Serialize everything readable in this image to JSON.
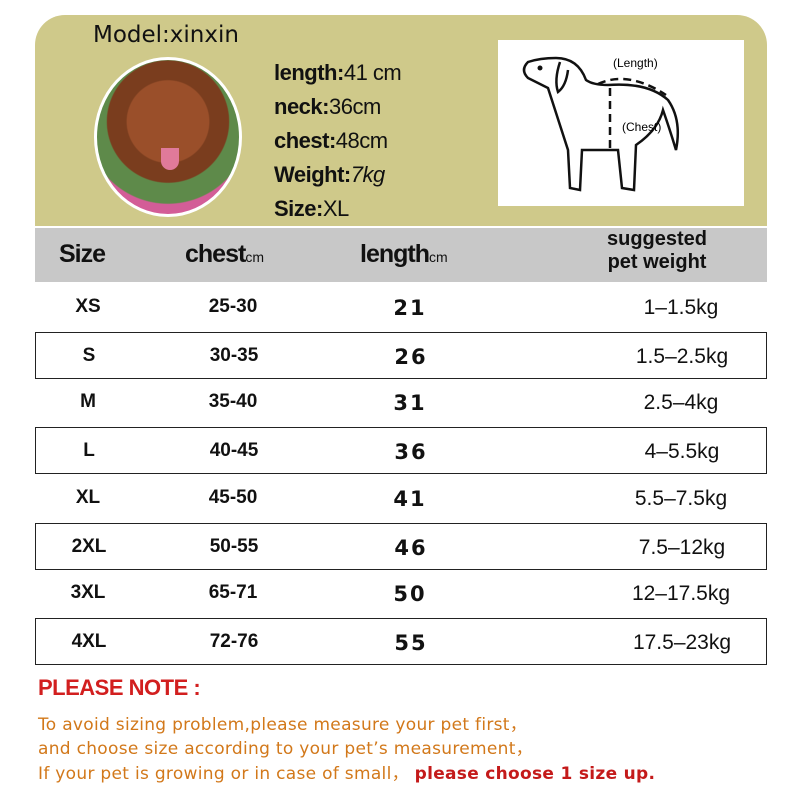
{
  "model": {
    "label": "Model:xinxin",
    "stats": [
      {
        "label": "length:",
        "value": "41 cm"
      },
      {
        "label": "neck:",
        "value": "36cm"
      },
      {
        "label": "chest:",
        "value": "48cm"
      },
      {
        "label": "Weight:",
        "value": "7kg"
      },
      {
        "label": "Size:",
        "value": "XL"
      }
    ]
  },
  "diagram": {
    "length_label": "(Length)",
    "chest_label": "(Chest)"
  },
  "table": {
    "headers": {
      "size": "Size",
      "chest": "chest",
      "chest_unit": "cm",
      "length": "length",
      "length_unit": "cm",
      "weight_1": "suggested",
      "weight_2": "pet weight"
    },
    "rows": [
      {
        "size": "XS",
        "chest": "25-30",
        "length": "21",
        "weight": "1–1.5kg"
      },
      {
        "size": "S",
        "chest": "30-35",
        "length": "26",
        "weight": "1.5–2.5kg"
      },
      {
        "size": "M",
        "chest": "35-40",
        "length": "31",
        "weight": "2.5–4kg"
      },
      {
        "size": "L",
        "chest": "40-45",
        "length": "36",
        "weight": "4–5.5kg"
      },
      {
        "size": "XL",
        "chest": "45-50",
        "length": "41",
        "weight": "5.5–7.5kg"
      },
      {
        "size": "2XL",
        "chest": "50-55",
        "length": "46",
        "weight": "7.5–12kg"
      },
      {
        "size": "3XL",
        "chest": "65-71",
        "length": "50",
        "weight": "12–17.5kg"
      },
      {
        "size": "4XL",
        "chest": "72-76",
        "length": "55",
        "weight": "17.5–23kg"
      }
    ]
  },
  "note": {
    "title": "PLEASE NOTE :",
    "line1": "To avoid sizing problem,please measure your pet first，",
    "line2": "and choose size according to your pet’s measurement，",
    "line3a": "If your pet is growing or in case of small，",
    "line3b": "please choose 1 size up."
  },
  "colors": {
    "panel": "#cfc98a",
    "header": "#c8c8c8",
    "note_title": "#d21f1f",
    "note_text": "#d2781a"
  }
}
